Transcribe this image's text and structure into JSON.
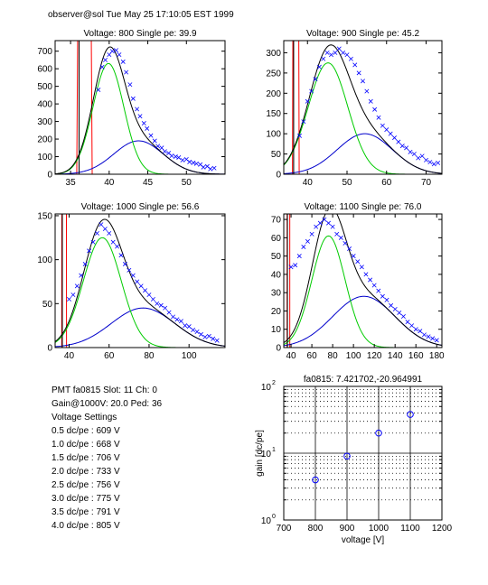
{
  "header": {
    "text": "observer@sol  Tue May 25 17:10:05 EST 1999"
  },
  "info": {
    "pmt_line": "PMT fa0815 Slot: 11 Ch: 0",
    "gain_line": "Gain@1000V: 20.0 Ped: 36",
    "voltage_title": "Voltage Settings",
    "settings": [
      "0.5 dc/pe : 609 V",
      "1.0 dc/pe : 668 V",
      "1.5 dc/pe : 706 V",
      "2.0 dc/pe : 733 V",
      "2.5 dc/pe : 756 V",
      "3.0 dc/pe : 775 V",
      "3.5 dc/pe : 791 V",
      "4.0 dc/pe : 805 V"
    ]
  },
  "colors": {
    "data": "#0000ff",
    "total": "#000000",
    "spe": "#00cc00",
    "multi": "#0000cc",
    "ped": "#ff0000",
    "fit": "#ff0000"
  },
  "chart_data": [
    {
      "type": "scatter",
      "title": "Voltage: 800 Single pe: 39.9",
      "xlim": [
        33,
        55
      ],
      "ylim": [
        0,
        760
      ],
      "xticks": [
        35,
        40,
        45,
        50
      ],
      "yticks": [
        0,
        100,
        200,
        300,
        400,
        500,
        600,
        700
      ],
      "spe": {
        "mu": 39.9,
        "sigma": 2.0,
        "amp": 630
      },
      "multi": {
        "mu": 43.8,
        "sigma": 3.2,
        "amp": 190
      },
      "ped": {
        "left": 36.1,
        "right": 37.5,
        "peak": 2000
      },
      "points": [
        [
          38.6,
          480
        ],
        [
          39.1,
          610
        ],
        [
          39.5,
          650
        ],
        [
          40.0,
          680
        ],
        [
          40.4,
          700
        ],
        [
          40.9,
          705
        ],
        [
          41.3,
          680
        ],
        [
          41.8,
          640
        ],
        [
          42.2,
          580
        ],
        [
          42.7,
          510
        ],
        [
          43.1,
          430
        ],
        [
          43.6,
          370
        ],
        [
          44.0,
          330
        ],
        [
          44.5,
          290
        ],
        [
          44.9,
          260
        ],
        [
          45.4,
          220
        ],
        [
          45.9,
          190
        ],
        [
          46.3,
          160
        ],
        [
          46.8,
          150
        ],
        [
          47.2,
          130
        ],
        [
          47.7,
          120
        ],
        [
          48.1,
          105
        ],
        [
          48.6,
          100
        ],
        [
          49.0,
          95
        ],
        [
          49.5,
          80
        ],
        [
          50.0,
          85
        ],
        [
          50.4,
          70
        ],
        [
          50.9,
          65
        ],
        [
          51.3,
          60
        ],
        [
          51.8,
          55
        ],
        [
          52.2,
          40
        ],
        [
          52.7,
          45
        ],
        [
          53.1,
          30
        ],
        [
          53.6,
          35
        ]
      ]
    },
    {
      "type": "scatter",
      "title": "Voltage: 900 Single pe: 45.2",
      "xlim": [
        34,
        74
      ],
      "ylim": [
        0,
        330
      ],
      "xticks": [
        40,
        50,
        60,
        70
      ],
      "yticks": [
        0,
        50,
        100,
        150,
        200,
        250,
        300
      ],
      "spe": {
        "mu": 45.2,
        "sigma": 5.0,
        "amp": 275
      },
      "multi": {
        "mu": 54.5,
        "sigma": 7.0,
        "amp": 100
      },
      "ped": {
        "left": 36.5,
        "right": 37.6,
        "peak": 1000
      },
      "points": [
        [
          38.0,
          95
        ],
        [
          39.0,
          130
        ],
        [
          40.0,
          180
        ],
        [
          41.0,
          205
        ],
        [
          42.0,
          235
        ],
        [
          43.0,
          265
        ],
        [
          44.0,
          285
        ],
        [
          45.0,
          300
        ],
        [
          46.0,
          295
        ],
        [
          47.0,
          300
        ],
        [
          48.0,
          310
        ],
        [
          49.0,
          300
        ],
        [
          50.0,
          295
        ],
        [
          51.0,
          285
        ],
        [
          52.0,
          270
        ],
        [
          53.0,
          250
        ],
        [
          54.0,
          230
        ],
        [
          55.0,
          205
        ],
        [
          56.0,
          180
        ],
        [
          57.0,
          160
        ],
        [
          58.0,
          140
        ],
        [
          59.0,
          120
        ],
        [
          60.0,
          110
        ],
        [
          61.0,
          100
        ],
        [
          62.0,
          90
        ],
        [
          63.0,
          80
        ],
        [
          64.0,
          70
        ],
        [
          65.0,
          65
        ],
        [
          66.0,
          55
        ],
        [
          67.0,
          50
        ],
        [
          68.0,
          40
        ],
        [
          69.0,
          45
        ],
        [
          70.0,
          35
        ],
        [
          71.0,
          30
        ],
        [
          72.0,
          25
        ],
        [
          73.0,
          28
        ]
      ]
    },
    {
      "type": "scatter",
      "title": "Voltage: 1000 Single pe: 56.6",
      "xlim": [
        33,
        118
      ],
      "ylim": [
        0,
        152
      ],
      "xticks": [
        40,
        60,
        80,
        100
      ],
      "yticks": [
        0,
        50,
        100,
        150
      ],
      "spe": {
        "mu": 56.6,
        "sigma": 9.5,
        "amp": 125
      },
      "multi": {
        "mu": 77.0,
        "sigma": 16.0,
        "amp": 45
      },
      "ped": {
        "left": 36.6,
        "right": 38.4,
        "peak": 1000
      },
      "points": [
        [
          40.0,
          55
        ],
        [
          42.0,
          60
        ],
        [
          44.0,
          70
        ],
        [
          46.0,
          82
        ],
        [
          48.0,
          95
        ],
        [
          50.0,
          110
        ],
        [
          52.0,
          120
        ],
        [
          54.0,
          130
        ],
        [
          56.0,
          140
        ],
        [
          58.0,
          135
        ],
        [
          60.0,
          130
        ],
        [
          62.0,
          120
        ],
        [
          64.0,
          115
        ],
        [
          66.0,
          105
        ],
        [
          68.0,
          95
        ],
        [
          70.0,
          88
        ],
        [
          72.0,
          82
        ],
        [
          74.0,
          75
        ],
        [
          76.0,
          70
        ],
        [
          78.0,
          65
        ],
        [
          80.0,
          60
        ],
        [
          82.0,
          55
        ],
        [
          84.0,
          50
        ],
        [
          86.0,
          48
        ],
        [
          88.0,
          45
        ],
        [
          90.0,
          40
        ],
        [
          92.0,
          35
        ],
        [
          94.0,
          32
        ],
        [
          96.0,
          30
        ],
        [
          98.0,
          25
        ],
        [
          100.0,
          24
        ],
        [
          102.0,
          20
        ],
        [
          104.0,
          18
        ],
        [
          106.0,
          15
        ],
        [
          108.0,
          12
        ],
        [
          110.0,
          13
        ],
        [
          112.0,
          10
        ],
        [
          114.0,
          8
        ]
      ]
    },
    {
      "type": "scatter",
      "title": "Voltage: 1100 Single pe: 76.0",
      "xlim": [
        33,
        185
      ],
      "ylim": [
        0,
        73
      ],
      "xticks": [
        40,
        60,
        80,
        100,
        120,
        140,
        160,
        180
      ],
      "yticks": [
        0,
        10,
        20,
        30,
        40,
        50,
        60,
        70
      ],
      "spe": {
        "mu": 76.0,
        "sigma": 16.0,
        "amp": 61
      },
      "multi": {
        "mu": 110.0,
        "sigma": 30.0,
        "amp": 28
      },
      "ped": {
        "left": 36.5,
        "right": 38.5,
        "peak": 1000
      },
      "points": [
        [
          40.0,
          44
        ],
        [
          44.0,
          45
        ],
        [
          48.0,
          50
        ],
        [
          52.0,
          55
        ],
        [
          56.0,
          58
        ],
        [
          60.0,
          62
        ],
        [
          64.0,
          66
        ],
        [
          68.0,
          68
        ],
        [
          72.0,
          70
        ],
        [
          76.0,
          68
        ],
        [
          80.0,
          66
        ],
        [
          84.0,
          62
        ],
        [
          88.0,
          60
        ],
        [
          92.0,
          57
        ],
        [
          96.0,
          54
        ],
        [
          100.0,
          50
        ],
        [
          104.0,
          47
        ],
        [
          108.0,
          44
        ],
        [
          112.0,
          40
        ],
        [
          116.0,
          37
        ],
        [
          120.0,
          34
        ],
        [
          124.0,
          31
        ],
        [
          128.0,
          28
        ],
        [
          132.0,
          26
        ],
        [
          136.0,
          23
        ],
        [
          140.0,
          21
        ],
        [
          144.0,
          19
        ],
        [
          148.0,
          17
        ],
        [
          152.0,
          14
        ],
        [
          156.0,
          12
        ],
        [
          160.0,
          10
        ],
        [
          164.0,
          9
        ],
        [
          168.0,
          7
        ],
        [
          172.0,
          6
        ],
        [
          176.0,
          5
        ],
        [
          180.0,
          4
        ]
      ]
    },
    {
      "type": "line",
      "title": "fa0815: 7.421702,-20.964991",
      "xlabel": "voltage [V]",
      "ylabel": "gain [dc/pe]",
      "xlim": [
        700,
        1200
      ],
      "ylim": [
        1,
        100
      ],
      "yscale": "log",
      "xticks": [
        700,
        800,
        900,
        1000,
        1100,
        1200
      ],
      "ytick_labels": [
        {
          "value": 1,
          "base": "10",
          "exp": "0"
        },
        {
          "value": 10,
          "base": "10",
          "exp": "1"
        },
        {
          "value": 100,
          "base": "10",
          "exp": "2"
        }
      ],
      "points": [
        [
          800,
          3.99
        ],
        [
          900,
          9.04
        ],
        [
          1000,
          20.0
        ],
        [
          1100,
          38.0
        ]
      ],
      "fit": {
        "slope": 7.421702,
        "intercept": -20.964991
      },
      "grid": true
    }
  ]
}
